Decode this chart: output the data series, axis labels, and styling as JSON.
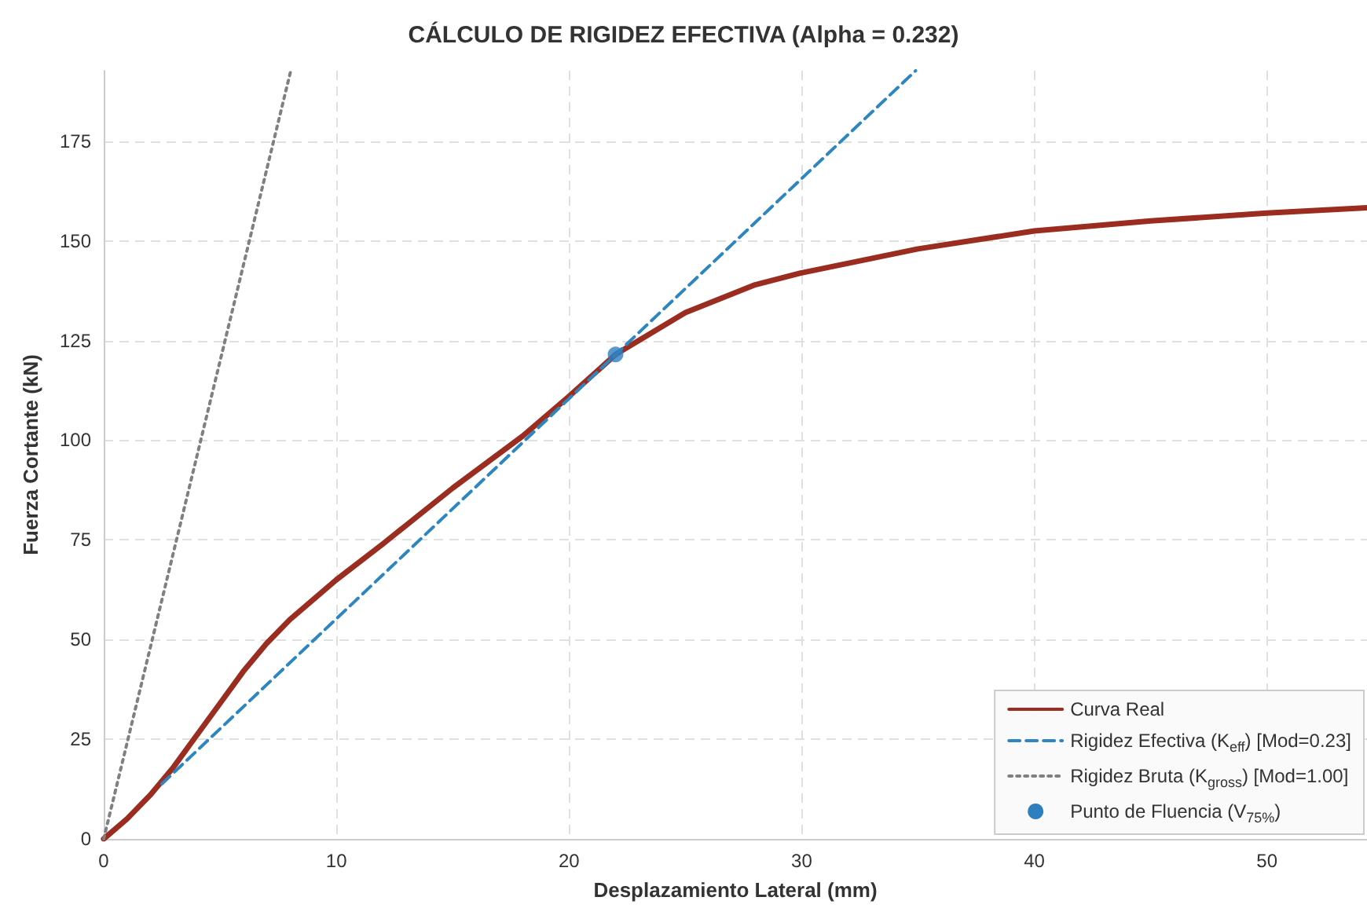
{
  "chart_data": {
    "type": "line",
    "title": "CÁLCULO DE RIGIDEZ EFECTIVA (Alpha = 0.232)",
    "xlabel": "Desplazamiento Lateral (mm)",
    "ylabel": "Fuerza Cortante (kN)",
    "xlim": [
      0,
      54.3
    ],
    "ylim": [
      0,
      192.7
    ],
    "xticks": [
      0,
      10,
      20,
      30,
      40,
      50
    ],
    "yticks": [
      0,
      25,
      50,
      75,
      100,
      125,
      150,
      175
    ],
    "grid": true,
    "legend": "bottom right",
    "marker": "none",
    "series": [
      {
        "name": "Curva Real",
        "color": "#9b2d20",
        "line_style": "solid",
        "x": [
          0,
          1,
          2,
          3,
          4,
          5,
          6,
          7,
          8,
          10,
          12,
          15,
          18,
          20,
          22,
          25,
          28,
          30,
          35,
          40,
          45,
          50,
          54.3
        ],
        "values": [
          0,
          5,
          11,
          18,
          26,
          34,
          42,
          49,
          55,
          65,
          74,
          88,
          101,
          111,
          121.5,
          132,
          139,
          142,
          148,
          152.5,
          155,
          157,
          158.3
        ]
      },
      {
        "name": "Rigidez Efectiva (K$_{eff}$) [Mod=0.23]",
        "color": "#2e86c1",
        "line_style": "dashed",
        "x": [
          2.5,
          34.9
        ],
        "values": [
          13.8,
          192.7
        ]
      },
      {
        "name": "Rigidez Bruta (K$_{gross}$) [Mod=1.00]",
        "color": "#808080",
        "line_style": "dotted",
        "x": [
          0,
          8.04
        ],
        "values": [
          0,
          192.7
        ]
      },
      {
        "name": "Punto de Fluencia (V$_{75%}$)",
        "type": "scatter",
        "marker": "circle",
        "color": "#2e7fc0",
        "x": [
          22
        ],
        "values": [
          121.5
        ]
      }
    ]
  }
}
